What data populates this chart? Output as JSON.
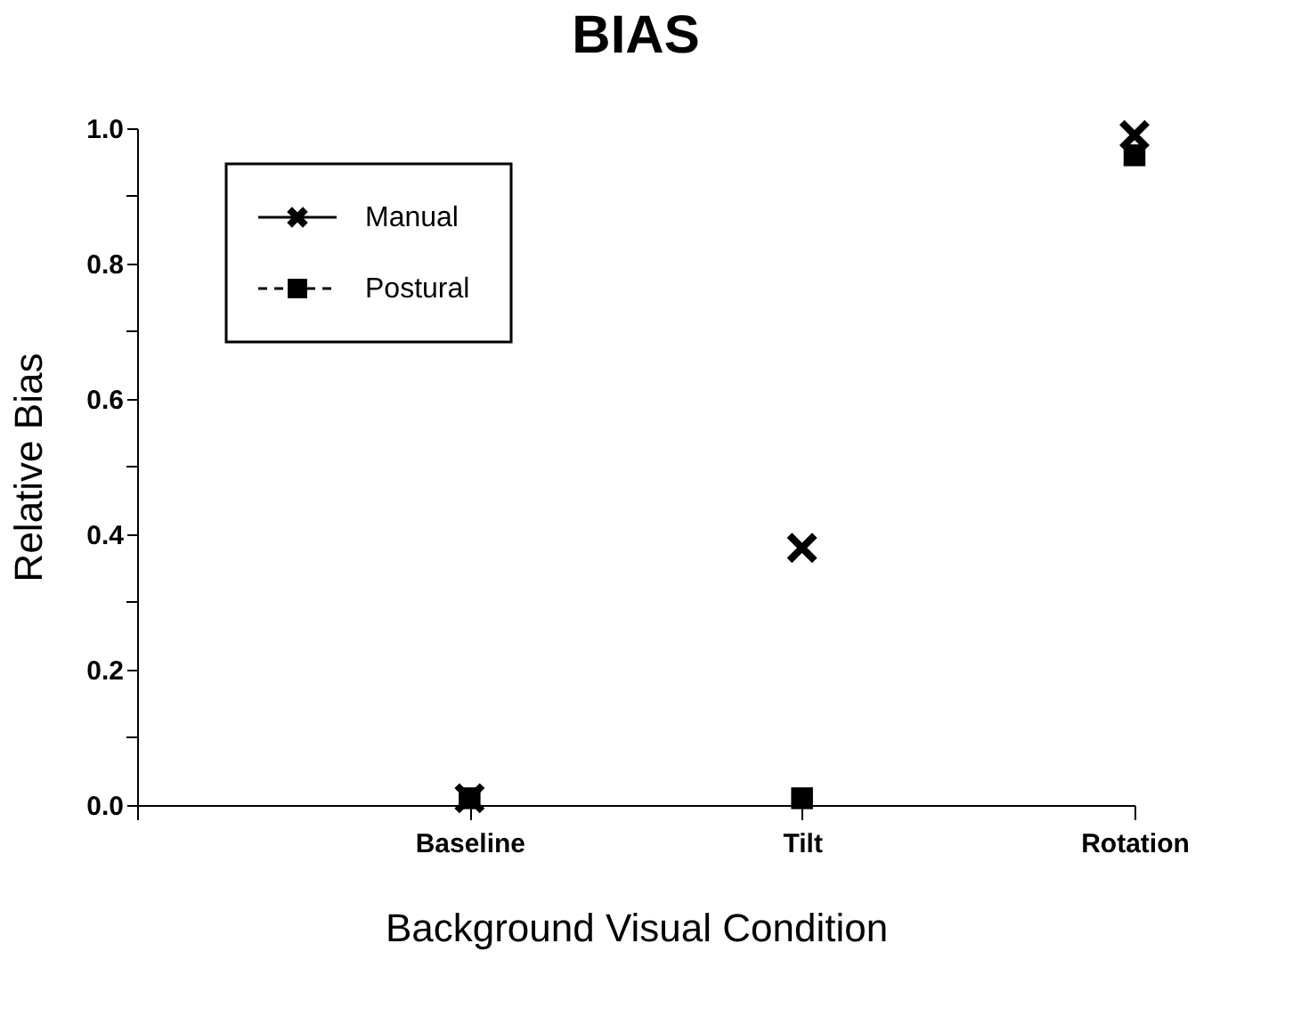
{
  "chart_data": {
    "type": "scatter",
    "title": "BIAS",
    "xlabel": "Background Visual Condition",
    "ylabel": "Relative Bias",
    "categories": [
      null,
      "Baseline",
      "Tilt",
      "Rotation"
    ],
    "series": [
      {
        "name": "Manual",
        "color": "#000000",
        "marker": "cross",
        "line_style": "solid",
        "values": [
          null,
          0.01,
          0.38,
          0.99
        ]
      },
      {
        "name": "Postural",
        "color": "#000000",
        "marker": "square",
        "line_style": "dashed",
        "values": [
          null,
          0.01,
          0.01,
          0.96
        ]
      }
    ],
    "ylim": [
      0,
      1
    ],
    "yticks": [
      {
        "value": 0,
        "label": "0.0"
      },
      {
        "value": 0.1,
        "label": null
      },
      0.2,
      {
        "value": 0.3,
        "label": null
      },
      0.4,
      {
        "value": 0.5,
        "label": null
      },
      0.6,
      {
        "value": 0.7,
        "label": null
      },
      0.8,
      {
        "value": 0.9,
        "label": null
      },
      {
        "value": 1,
        "label": "1.0"
      }
    ],
    "grid": false,
    "legend": "top left"
  }
}
